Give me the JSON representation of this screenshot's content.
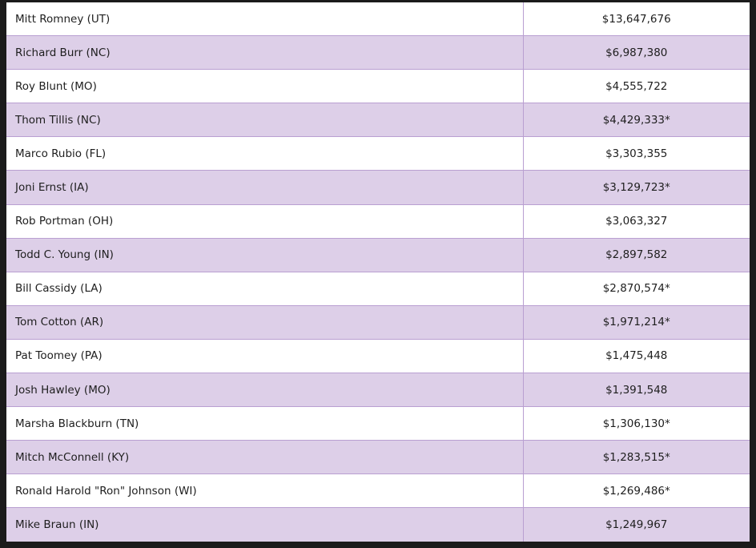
{
  "table": {
    "rows": [
      [
        "Mitt Romney (UT)",
        "$13,647,676"
      ],
      [
        "Richard Burr (NC)",
        "$6,987,380"
      ],
      [
        "Roy Blunt (MO)",
        "$4,555,722"
      ],
      [
        "Thom Tillis (NC)",
        "$4,429,333*"
      ],
      [
        "Marco Rubio (FL)",
        "$3,303,355"
      ],
      [
        "Joni Ernst (IA)",
        "$3,129,723*"
      ],
      [
        "Rob Portman (OH)",
        "$3,063,327"
      ],
      [
        "Todd C. Young (IN)",
        "$2,897,582"
      ],
      [
        "Bill Cassidy (LA)",
        "$2,870,574*"
      ],
      [
        "Tom Cotton (AR)",
        "$1,971,214*"
      ],
      [
        "Pat Toomey (PA)",
        "$1,475,448"
      ],
      [
        "Josh Hawley (MO)",
        "$1,391,548"
      ],
      [
        "Marsha Blackburn (TN)",
        "$1,306,130*"
      ],
      [
        "Mitch McConnell (KY)",
        "$1,283,515*"
      ],
      [
        "Ronald Harold \"Ron\" Johnson (WI)",
        "$1,269,486*"
      ],
      [
        "Mike Braun (IN)",
        "$1,249,967"
      ]
    ]
  }
}
